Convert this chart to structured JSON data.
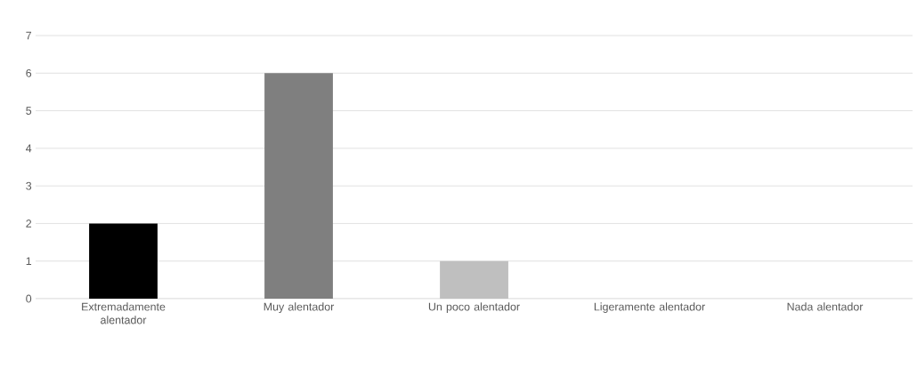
{
  "chart_data": {
    "type": "bar",
    "categories": [
      "Extremadamente alentador",
      "Muy alentador",
      "Un poco alentador",
      "Ligeramente alentador",
      "Nada alentador"
    ],
    "values": [
      2,
      6,
      1,
      0,
      0
    ],
    "colors": [
      "#000000",
      "#7f7f7f",
      "#bfbfbf",
      "#a5a5a5",
      "#595959"
    ],
    "ylim": [
      0,
      7
    ],
    "yticks": [
      0,
      1,
      2,
      3,
      4,
      5,
      6,
      7
    ],
    "grid": "y"
  }
}
